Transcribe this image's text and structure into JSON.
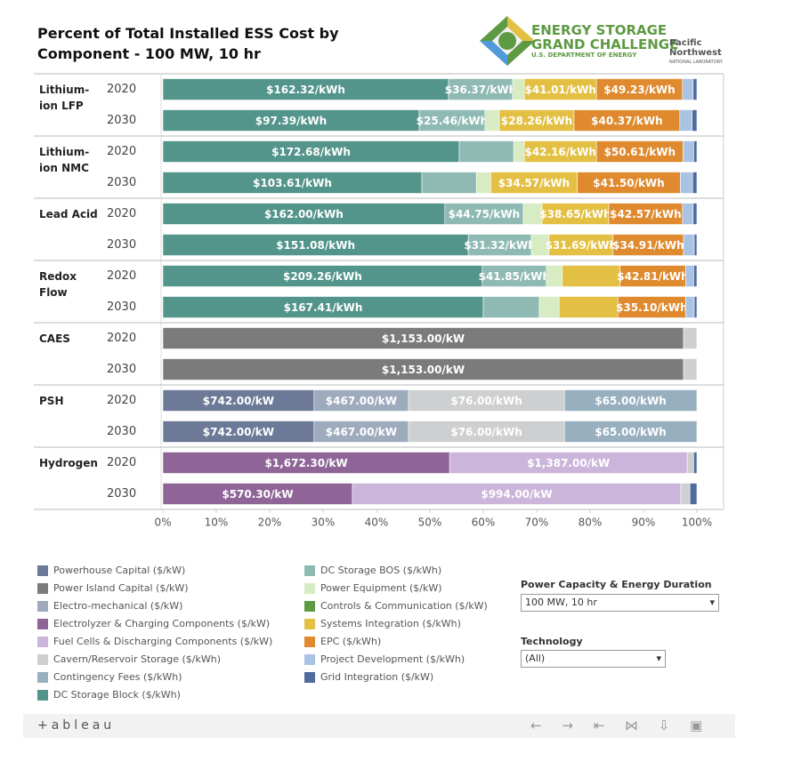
{
  "chart_data": {
    "type": "bar",
    "orientation": "horizontal",
    "stacked": true,
    "title": "Percent of Total Installed ESS Cost by Component - 100 MW, 10 hr",
    "groups": [
      "Lithium-ion LFP",
      "Lithium-ion NMC",
      "Lead Acid",
      "Redox Flow",
      "CAES",
      "PSH",
      "Hydrogen"
    ],
    "categories": [
      "2020",
      "2030",
      "2020",
      "2030",
      "2020",
      "2030",
      "2020",
      "2030",
      "2020",
      "2030",
      "2020",
      "2030",
      "2020",
      "2030"
    ],
    "xlim": [
      0,
      100
    ],
    "xticks": [
      {
        "value": 0,
        "label": "0%"
      },
      {
        "value": 10,
        "label": "10%"
      },
      {
        "value": 20,
        "label": "20%"
      },
      {
        "value": 30,
        "label": "30%"
      },
      {
        "value": 40,
        "label": "40%"
      },
      {
        "value": 50,
        "label": "50%"
      },
      {
        "value": 60,
        "label": "60%"
      },
      {
        "value": 70,
        "label": "70%"
      },
      {
        "value": 80,
        "label": "80%"
      },
      {
        "value": 90,
        "label": "90%"
      },
      {
        "value": 100,
        "label": "100%"
      }
    ],
    "series": [
      {
        "name": "Powerhouse Capital ($/kW)",
        "color": "#6c7a98",
        "values": [
          null,
          null,
          null,
          null,
          null,
          null,
          null,
          null,
          null,
          null,
          28.3,
          28.3,
          null,
          null
        ],
        "cost_labels": [
          null,
          null,
          null,
          null,
          null,
          null,
          null,
          null,
          null,
          null,
          "$742.00/kW",
          "$742.00/kW",
          null,
          null
        ]
      },
      {
        "name": "Power Island Capital ($/kW)",
        "color": "#7b7b7b",
        "values": [
          null,
          null,
          null,
          null,
          null,
          null,
          null,
          null,
          97.5,
          97.5,
          null,
          null,
          null,
          null
        ],
        "cost_labels": [
          null,
          null,
          null,
          null,
          null,
          null,
          null,
          null,
          "$1,153.00/kW",
          "$1,153.00/kW",
          null,
          null,
          null,
          null
        ]
      },
      {
        "name": "Electro-mechanical ($/kW)",
        "color": "#9eabbd",
        "values": [
          null,
          null,
          null,
          null,
          null,
          null,
          null,
          null,
          null,
          null,
          17.7,
          17.7,
          null,
          null
        ],
        "cost_labels": [
          null,
          null,
          null,
          null,
          null,
          null,
          null,
          null,
          null,
          null,
          "$467.00/kW",
          "$467.00/kW",
          null,
          null
        ]
      },
      {
        "name": "Electrolyzer & Charging Components ($/kW)",
        "color": "#8f6598",
        "values": [
          null,
          null,
          null,
          null,
          null,
          null,
          null,
          null,
          null,
          null,
          null,
          null,
          53.7,
          35.5
        ],
        "cost_labels": [
          null,
          null,
          null,
          null,
          null,
          null,
          null,
          null,
          null,
          null,
          null,
          null,
          "$1,672.30/kW",
          "$570.30/kW"
        ]
      },
      {
        "name": "Fuel Cells & Discharging Components ($/kW)",
        "color": "#ccb5da",
        "values": [
          null,
          null,
          null,
          null,
          null,
          null,
          null,
          null,
          null,
          null,
          null,
          null,
          44.5,
          61.5
        ],
        "cost_labels": [
          null,
          null,
          null,
          null,
          null,
          null,
          null,
          null,
          null,
          null,
          null,
          null,
          "$1,387.00/kW",
          "$994.00/kW"
        ]
      },
      {
        "name": "Cavern/Reservoir Storage ($/kWh)",
        "color": "#cdcfd1",
        "values": [
          null,
          null,
          null,
          null,
          null,
          null,
          null,
          null,
          2.5,
          2.5,
          29.2,
          29.2,
          1.2,
          1.7
        ],
        "cost_labels": [
          null,
          null,
          null,
          null,
          null,
          null,
          null,
          null,
          null,
          null,
          "$76.00/kWh",
          "$76.00/kWh",
          null,
          null
        ]
      },
      {
        "name": "Contingency Fees ($/kWh)",
        "color": "#98afc0",
        "values": [
          null,
          null,
          null,
          null,
          null,
          null,
          null,
          null,
          null,
          null,
          24.8,
          24.8,
          null,
          null
        ],
        "cost_labels": [
          null,
          null,
          null,
          null,
          null,
          null,
          null,
          null,
          null,
          null,
          "$65.00/kWh",
          "$65.00/kWh",
          null,
          null
        ]
      },
      {
        "name": "DC Storage Block ($/kWh)",
        "color": "#53958b",
        "values": [
          53.5,
          48,
          55.5,
          48.5,
          52.8,
          57.2,
          59.8,
          60,
          null,
          null,
          null,
          null,
          null,
          null
        ],
        "cost_labels": [
          "$162.32/kWh",
          "$97.39/kWh",
          "$172.68/kWh",
          "$103.61/kWh",
          "$162.00/kWh",
          "$151.08/kWh",
          "$209.26/kWh",
          "$167.41/kWh",
          null,
          null,
          null,
          null,
          null,
          null
        ]
      },
      {
        "name": "DC Storage BOS ($/kWh)",
        "color": "#8fbab3",
        "values": [
          12,
          12.3,
          10.2,
          10.2,
          14.7,
          11.8,
          12,
          10.5,
          null,
          null,
          null,
          null,
          null,
          null
        ],
        "cost_labels": [
          "$36.37/kWh",
          "$25.46/kWh",
          null,
          null,
          "$44.75/kWh",
          "$31.32/kWh",
          "$41.85/kWh",
          null,
          null,
          null,
          null,
          null,
          null,
          null
        ]
      },
      {
        "name": "Power Equipment ($/kW)",
        "color": "#d7ecc2",
        "values": [
          2.2,
          2.7,
          2,
          2.7,
          3.5,
          3.3,
          3,
          3.7,
          null,
          null,
          null,
          null,
          null,
          null
        ],
        "cost_labels": [
          null,
          null,
          null,
          null,
          null,
          null,
          null,
          null,
          null,
          null,
          null,
          null,
          null,
          null
        ]
      },
      {
        "name": "Controls & Communication ($/kW)",
        "color": "#5e9a43",
        "values": [
          null,
          null,
          null,
          null,
          null,
          null,
          null,
          null,
          null,
          null,
          null,
          null,
          null,
          null
        ],
        "cost_labels": [
          null,
          null,
          null,
          null,
          null,
          null,
          null,
          null,
          null,
          null,
          null,
          null,
          null,
          null
        ]
      },
      {
        "name": "Systems Integration ($/kWh)",
        "color": "#e3c043",
        "values": [
          13.5,
          14,
          13.5,
          16.2,
          12.5,
          12,
          10.8,
          11,
          null,
          null,
          null,
          null,
          null,
          null
        ],
        "cost_labels": [
          "$41.01/kWh",
          "$28.26/kWh",
          "$42.16/kWh",
          "$34.57/kWh",
          "$38.65/kWh",
          "$31.69/kWh",
          null,
          null,
          null,
          null,
          null,
          null,
          null,
          null
        ]
      },
      {
        "name": "EPC ($/kWh)",
        "color": "#df8a2e",
        "values": [
          16.1,
          19.8,
          16.2,
          19.3,
          13.8,
          13.2,
          12.3,
          12.7,
          null,
          null,
          null,
          null,
          null,
          null
        ],
        "cost_labels": [
          "$49.23/kWh",
          "$40.37/kWh",
          "$50.61/kWh",
          "$41.50/kWh",
          "$42.57/kWh",
          "$34.91/kWh",
          "$42.81/kWh",
          "$35.10/kWh",
          null,
          null,
          null,
          null,
          null,
          null
        ]
      },
      {
        "name": "Project Development ($/kWh)",
        "color": "#a9c3e4",
        "values": [
          2,
          2.3,
          2,
          2.3,
          2,
          2,
          1.5,
          1.6,
          null,
          null,
          null,
          null,
          null,
          null
        ],
        "cost_labels": [
          null,
          null,
          null,
          null,
          null,
          null,
          null,
          null,
          null,
          null,
          null,
          null,
          null,
          null
        ]
      },
      {
        "name": "Grid Integration ($/kW)",
        "color": "#4f6a9c",
        "values": [
          0.7,
          0.9,
          0.6,
          0.8,
          0.7,
          0.5,
          0.6,
          0.5,
          null,
          null,
          null,
          null,
          0.6,
          1.3
        ],
        "cost_labels": [
          null,
          null,
          null,
          null,
          null,
          null,
          null,
          null,
          null,
          null,
          null,
          null,
          null,
          null
        ]
      }
    ]
  },
  "header": {
    "logo_line1": "ENERGY STORAGE",
    "logo_line2": "GRAND CHALLENGE",
    "logo_line3": "U.S. DEPARTMENT OF ENERGY",
    "lab_line1": "Pacific",
    "lab_line2": "Northwest",
    "lab_line3": "NATIONAL LABORATORY"
  },
  "filters": [
    {
      "label": "Power Capacity & Energy Duration",
      "value": "100 MW, 10 hr"
    },
    {
      "label": "Technology",
      "value": "(All)"
    }
  ],
  "footer": {
    "brand": "+ableau"
  }
}
